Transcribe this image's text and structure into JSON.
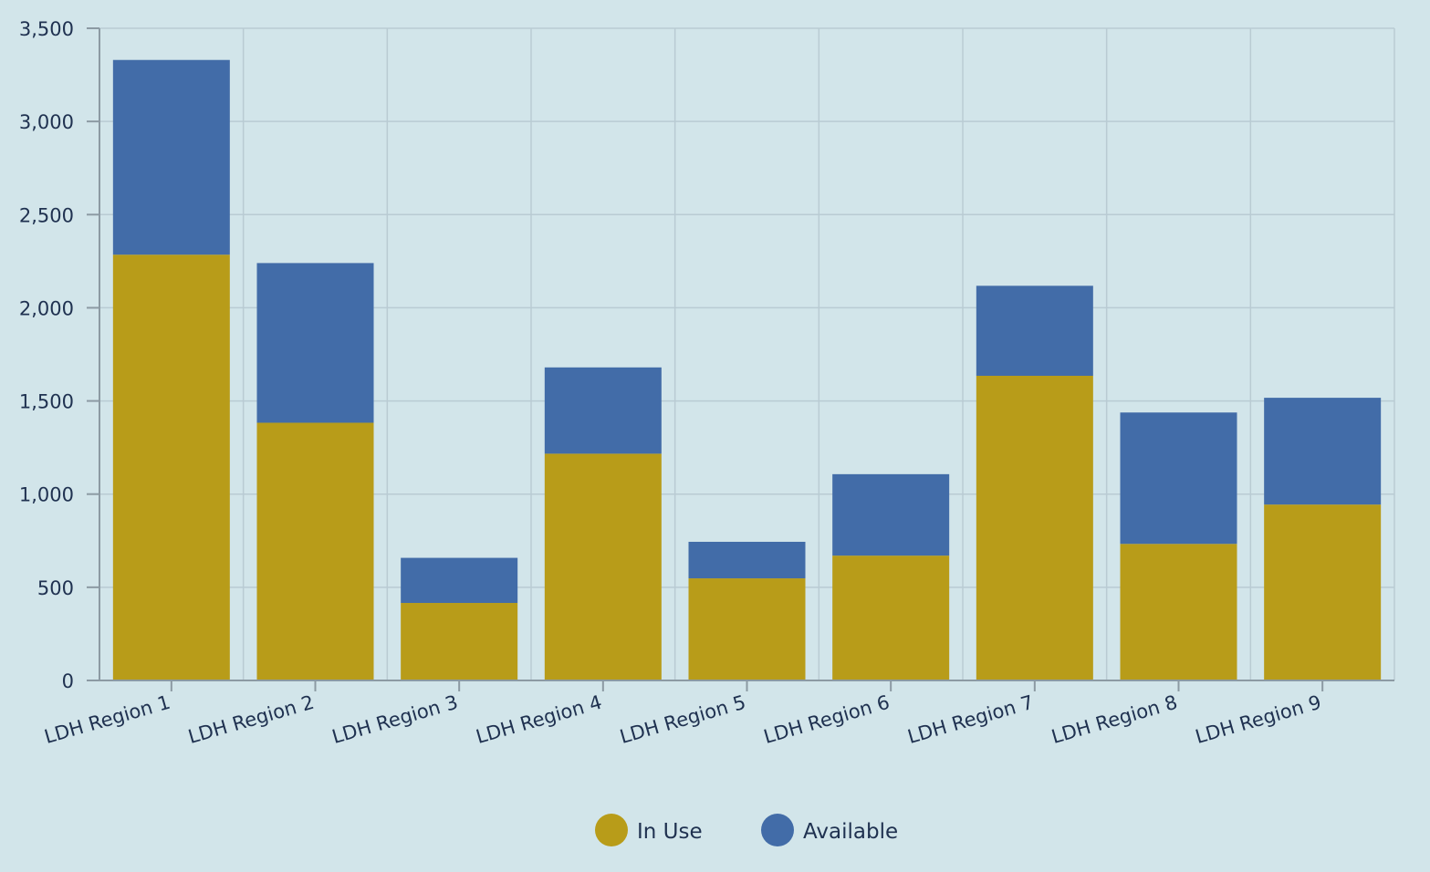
{
  "chart_data": {
    "type": "bar",
    "stacked": true,
    "title": "",
    "xlabel": "",
    "ylabel": "",
    "ylim": [
      0,
      3500
    ],
    "yticks": [
      0,
      500,
      1000,
      1500,
      2000,
      2500,
      3000,
      3500
    ],
    "ytick_labels": [
      "0",
      "500",
      "1,000",
      "1,500",
      "2,000",
      "2,500",
      "3,000",
      "3,500"
    ],
    "grid": true,
    "legend_position": "bottom-center",
    "categories": [
      "LDH Region 1",
      "LDH Region 2",
      "LDH Region 3",
      "LDH Region 4",
      "LDH Region 5",
      "LDH Region 6",
      "LDH Region 7",
      "LDH Region 8",
      "LDH Region 9"
    ],
    "series": [
      {
        "name": "In Use",
        "color": "#b89c19",
        "values": [
          2285,
          1383,
          416,
          1217,
          548,
          670,
          1635,
          733,
          944
        ]
      },
      {
        "name": "Available",
        "color": "#426ca8",
        "values": [
          1045,
          857,
          242,
          463,
          196,
          437,
          483,
          705,
          573
        ]
      }
    ]
  }
}
